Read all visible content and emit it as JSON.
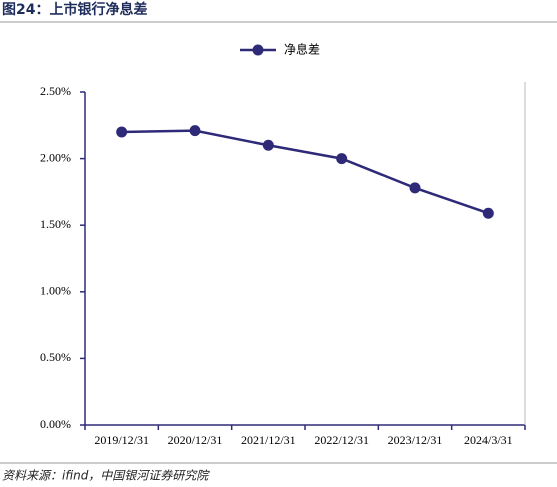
{
  "chart_data": {
    "type": "line",
    "title": "图24：上市银行净息差",
    "categories": [
      "2019/12/31",
      "2020/12/31",
      "2021/12/31",
      "2022/12/31",
      "2023/12/31",
      "2024/3/31"
    ],
    "series": [
      {
        "name": "净息差",
        "color": "#2e2a78",
        "values": [
          2.2,
          2.21,
          2.1,
          2.0,
          1.78,
          1.59
        ]
      }
    ],
    "ylim": [
      0,
      2.5
    ],
    "yticks": [
      {
        "value": 0,
        "label": "0.00%"
      },
      {
        "value": 0.5,
        "label": "0.50%"
      },
      {
        "value": 1,
        "label": "1.00%"
      },
      {
        "value": 1.5,
        "label": "1.50%"
      },
      {
        "value": 2,
        "label": "2.00%"
      },
      {
        "value": 2.5,
        "label": "2.50%"
      }
    ],
    "legend": "top",
    "source": "资料来源：ifind，中国银河证券研究院"
  }
}
